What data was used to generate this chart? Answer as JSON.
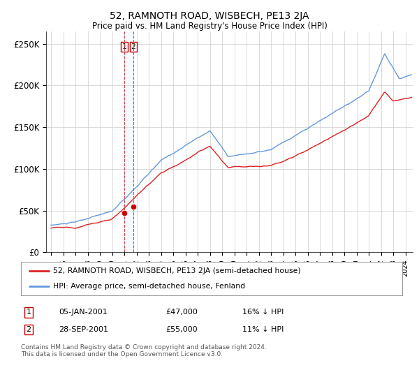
{
  "title": "52, RAMNOTH ROAD, WISBECH, PE13 2JA",
  "subtitle": "Price paid vs. HM Land Registry's House Price Index (HPI)",
  "ylabel_ticks": [
    "£0",
    "£50K",
    "£100K",
    "£150K",
    "£200K",
    "£250K"
  ],
  "ytick_values": [
    0,
    50000,
    100000,
    150000,
    200000,
    250000
  ],
  "ylim": [
    0,
    265000
  ],
  "xlim_start": 1994.6,
  "xlim_end": 2024.6,
  "red_line_color": "#dd2222",
  "blue_line_color": "#6699dd",
  "marker_color": "#cc0000",
  "vline_color": "#cc3333",
  "shade_color": "#ddeeff",
  "sale1_x": 2001.02,
  "sale1_y": 47000,
  "sale2_x": 2001.74,
  "sale2_y": 55000,
  "legend_line1": "52, RAMNOTH ROAD, WISBECH, PE13 2JA (semi-detached house)",
  "legend_line2": "HPI: Average price, semi-detached house, Fenland",
  "table_row1_num": "1",
  "table_row1_date": "05-JAN-2001",
  "table_row1_price": "£47,000",
  "table_row1_hpi": "16% ↓ HPI",
  "table_row2_num": "2",
  "table_row2_date": "28-SEP-2001",
  "table_row2_price": "£55,000",
  "table_row2_hpi": "11% ↓ HPI",
  "footnote": "Contains HM Land Registry data © Crown copyright and database right 2024.\nThis data is licensed under the Open Government Licence v3.0.",
  "bg_color": "#ffffff",
  "grid_color": "#cccccc"
}
